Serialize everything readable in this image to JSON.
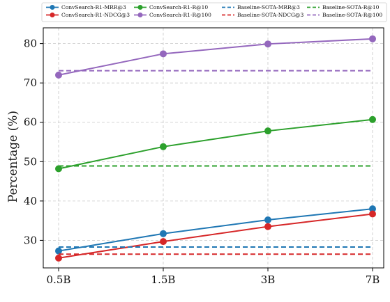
{
  "chart_data": {
    "type": "line",
    "title": "",
    "xlabel": "",
    "ylabel": "Percentage (%)",
    "categories": [
      "0.5B",
      "1.5B",
      "3B",
      "7B"
    ],
    "yticks": [
      30,
      40,
      50,
      60,
      70,
      80
    ],
    "ylim": [
      23,
      84
    ],
    "grid": true,
    "legend_placement": "top",
    "series": [
      {
        "name": "ConvSearch-R1-MRR@3",
        "color": "#1f77b4",
        "style": "solid",
        "values": [
          27.3,
          31.7,
          35.2,
          38.0
        ]
      },
      {
        "name": "ConvSearch-R1-NDCG@3",
        "color": "#d62728",
        "style": "solid",
        "values": [
          25.5,
          29.7,
          33.5,
          36.7
        ]
      },
      {
        "name": "ConvSearch-R1-R@10",
        "color": "#2ca02c",
        "style": "solid",
        "values": [
          48.2,
          53.8,
          57.8,
          60.7
        ]
      },
      {
        "name": "ConvSearch-R1-R@100",
        "color": "#9467bd",
        "style": "solid",
        "values": [
          72.0,
          77.4,
          79.9,
          81.2
        ]
      },
      {
        "name": "Baseline-SOTA-MRR@3",
        "color": "#1f77b4",
        "style": "dashed",
        "values": [
          28.3,
          28.3,
          28.3,
          28.3
        ]
      },
      {
        "name": "Baseline-SOTA-NDCG@3",
        "color": "#d62728",
        "style": "dashed",
        "values": [
          26.5,
          26.5,
          26.5,
          26.5
        ]
      },
      {
        "name": "Baseline-SOTA-R@10",
        "color": "#2ca02c",
        "style": "dashed",
        "values": [
          48.9,
          48.9,
          48.9,
          48.9
        ]
      },
      {
        "name": "Baseline-SOTA-R@100",
        "color": "#9467bd",
        "style": "dashed",
        "values": [
          73.1,
          73.1,
          73.1,
          73.1
        ]
      }
    ]
  }
}
